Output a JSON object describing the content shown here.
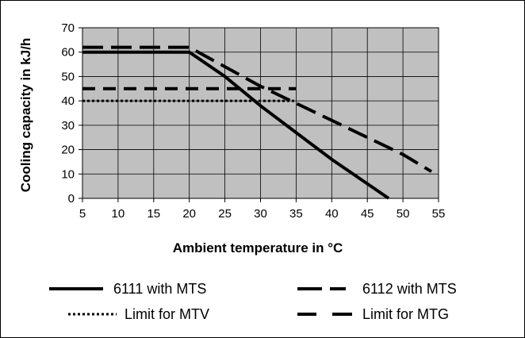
{
  "chart_data": {
    "type": "line",
    "title": "",
    "xlabel": "Ambient temperature in °C",
    "ylabel": "Cooling capacity in kJ/h",
    "xlim": [
      5,
      55
    ],
    "ylim": [
      0,
      70
    ],
    "x_ticks": [
      "5",
      "10",
      "15",
      "20",
      "25",
      "30",
      "35",
      "40",
      "45",
      "50",
      "55"
    ],
    "y_ticks": [
      "0",
      "10",
      "20",
      "30",
      "40",
      "50",
      "60",
      "70"
    ],
    "grid": true,
    "legend_position": "bottom",
    "plot_background": "#c0c0c0",
    "series": [
      {
        "name": "6111 with MTS",
        "style": "solid",
        "x": [
          5,
          20,
          25,
          30,
          35,
          40,
          48
        ],
        "y": [
          60,
          60,
          50,
          38,
          27,
          16,
          0
        ]
      },
      {
        "name": "6112 with MTS",
        "style": "long-dash",
        "x": [
          5,
          20,
          25,
          30,
          35,
          40,
          45,
          50,
          54
        ],
        "y": [
          62,
          62,
          54,
          46,
          39,
          32,
          25,
          18,
          11
        ]
      },
      {
        "name": "Limit for MTV",
        "style": "dotted",
        "x": [
          5,
          35
        ],
        "y": [
          40,
          40
        ]
      },
      {
        "name": "Limit for MTG",
        "style": "dash",
        "x": [
          5,
          35
        ],
        "y": [
          45,
          45
        ]
      }
    ]
  }
}
